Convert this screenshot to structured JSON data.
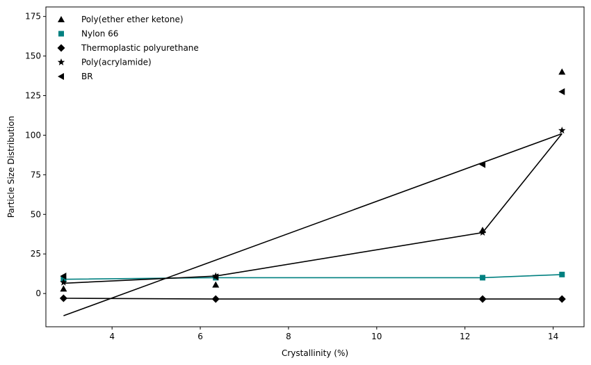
{
  "chart_data": {
    "type": "scatter",
    "xlabel": "Crystallinity (%)",
    "ylabel": "Particle Size Distribution",
    "xlim": [
      2.5,
      14.7
    ],
    "ylim": [
      -21,
      181
    ],
    "xticks": [
      4,
      6,
      8,
      10,
      12,
      14
    ],
    "yticks": [
      0,
      25,
      50,
      75,
      100,
      125,
      150,
      175
    ],
    "grid": false,
    "legend_position": "top-left",
    "series": [
      {
        "name": "Poly(ether ether ketone)",
        "marker": "triangle-up",
        "color": "#000000",
        "x": [
          2.9,
          6.35,
          12.4,
          14.2
        ],
        "y": [
          3,
          5.5,
          40,
          140
        ]
      },
      {
        "name": "Nylon 66",
        "marker": "square",
        "color": "#008080",
        "x": [
          2.9,
          6.35,
          12.4,
          14.2
        ],
        "y": [
          9,
          10,
          10,
          12
        ]
      },
      {
        "name": "Thermoplastic polyurethane",
        "marker": "diamond",
        "color": "#000000",
        "x": [
          2.9,
          6.35,
          12.4,
          14.2
        ],
        "y": [
          -3,
          -3.5,
          -3.5,
          -3.5
        ]
      },
      {
        "name": "Poly(acrylamide)",
        "marker": "star",
        "color": "#000000",
        "x": [
          2.9,
          6.35,
          12.4,
          14.2
        ],
        "y": [
          7,
          11,
          38.5,
          103
        ]
      },
      {
        "name": "BR",
        "marker": "triangle-left",
        "color": "#000000",
        "x": [
          2.9,
          6.35,
          12.4,
          14.2
        ],
        "y": [
          11,
          10.5,
          81.5,
          127.5
        ]
      }
    ],
    "lines": [
      {
        "color": "#008080",
        "x": [
          2.9,
          6.35,
          12.4,
          14.2
        ],
        "y": [
          9,
          10,
          10,
          12
        ]
      },
      {
        "color": "#000000",
        "x": [
          2.9,
          6.35,
          12.4,
          14.2
        ],
        "y": [
          -3,
          -3.5,
          -3.5,
          -3.5
        ]
      },
      {
        "color": "#000000",
        "x": [
          2.9,
          6.35,
          12.4,
          14.2
        ],
        "y": [
          6.5,
          11,
          38.5,
          101
        ]
      },
      {
        "color": "#000000",
        "x": [
          2.9,
          14.2
        ],
        "y": [
          -14,
          101
        ]
      }
    ]
  }
}
